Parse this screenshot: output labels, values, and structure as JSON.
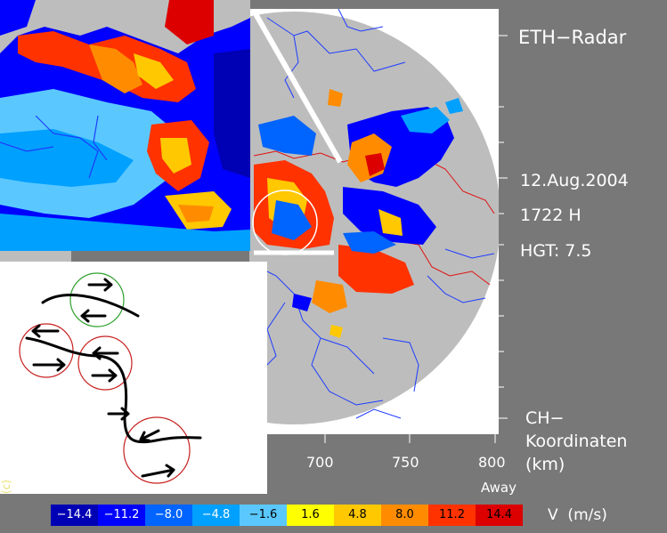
{
  "title": "ETH−Radar",
  "date": "12.Aug.2004",
  "time": "1722 H",
  "height": "HGT: 7.5",
  "coord_label": "CH−\nKoordinaten\n(km)",
  "x_axis": {
    "ticks": [
      "700",
      "750",
      "800"
    ],
    "label": "Away"
  },
  "copyright": "(c)",
  "legend": {
    "unit": "V  (m/s)",
    "entries": [
      {
        "label": "−14.4",
        "color": "#0000b4"
      },
      {
        "label": "−11.2",
        "color": "#0000ff"
      },
      {
        "label": "−8.0",
        "color": "#0064ff"
      },
      {
        "label": "−4.8",
        "color": "#00a0ff"
      },
      {
        "label": "−1.6",
        "color": "#5ac8ff"
      },
      {
        "label": "1.6",
        "color": "#ffff00"
      },
      {
        "label": "4.8",
        "color": "#ffc800"
      },
      {
        "label": "8.0",
        "color": "#ff8c00"
      },
      {
        "label": "11.2",
        "color": "#ff3200"
      },
      {
        "label": "14.4",
        "color": "#dc0000"
      }
    ]
  },
  "colors": {
    "background": "#787878",
    "radar_disk": "#bdbdbd",
    "plot_area": "#ffffff",
    "rivers": "#1e3cff",
    "borders": "#e01010",
    "vortex_green": "#2ca02c",
    "vortex_red": "#c82020"
  }
}
